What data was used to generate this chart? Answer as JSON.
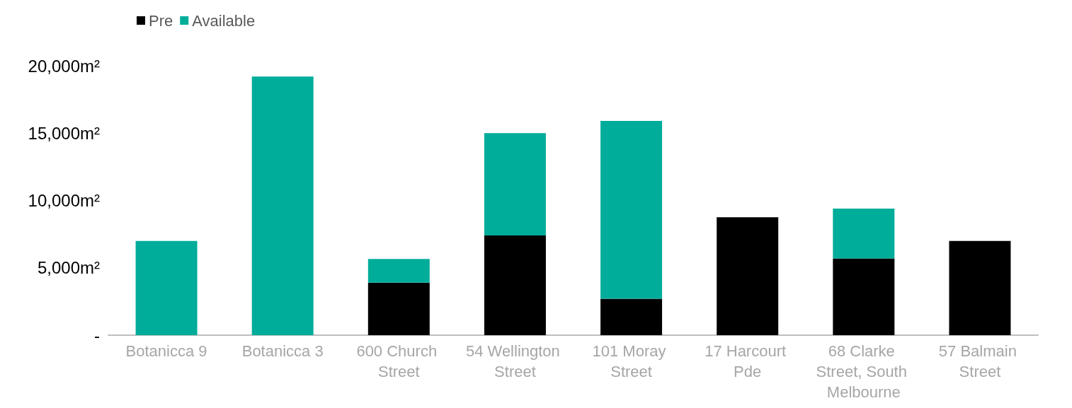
{
  "chart_data": {
    "type": "bar",
    "stacked": true,
    "categories": [
      "Botanicca 9",
      "Botanicca 3",
      "600 Church Street",
      "54 Wellington Street",
      "101 Moray Street",
      "17 Harcourt Pde",
      "68 Clarke Street, South Melbourne",
      "57 Balmain Street"
    ],
    "series": [
      {
        "name": "Pre",
        "color": "#000000",
        "values": [
          0,
          0,
          3900,
          7400,
          2700,
          8750,
          5700,
          7000
        ]
      },
      {
        "name": "Available",
        "color": "#00ad9a",
        "values": [
          7000,
          19200,
          1750,
          7600,
          13200,
          0,
          3700,
          0
        ]
      }
    ],
    "ylim": [
      0,
      20000
    ],
    "yticks": [
      {
        "value": 0,
        "label": "-"
      },
      {
        "value": 5000,
        "label": "5,000m²"
      },
      {
        "value": 10000,
        "label": "10,000m²"
      },
      {
        "value": 15000,
        "label": "15,000m²"
      },
      {
        "value": 20000,
        "label": "20,000m²"
      }
    ],
    "grid": false,
    "legend": "top left"
  }
}
